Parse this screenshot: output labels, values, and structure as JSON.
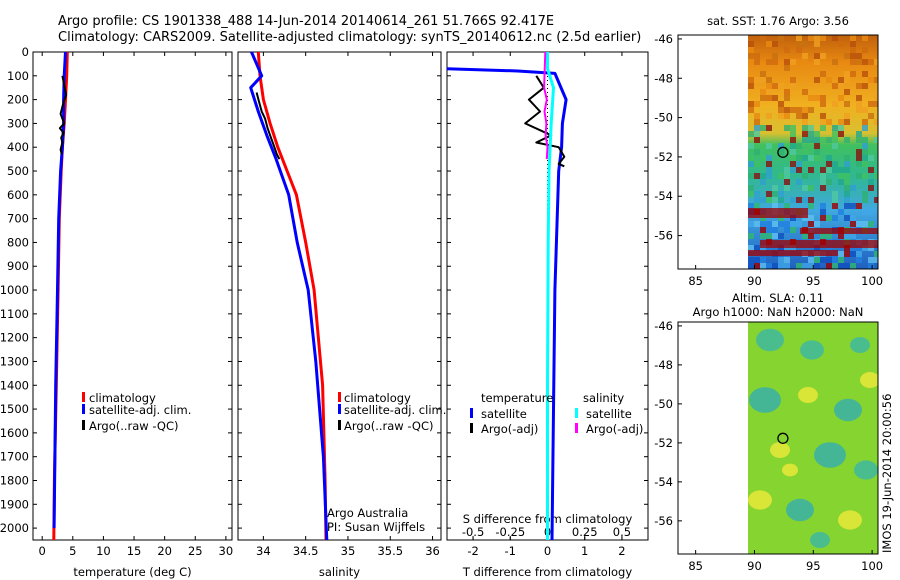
{
  "title": {
    "line1": "Argo profile: CS 1901338_488 14-Jun-2014 20140614_261 51.766S 92.417E",
    "line2": "Climatology: CARS2009. Satellite-adjusted climatology: synTS_20140612.nc (2.5d earlier)"
  },
  "colors": {
    "climatology": "#ff0000",
    "satellite": "#0000ff",
    "argo": "#000000",
    "sal_satellite": "#00ffff",
    "sal_argo": "#ff00ff"
  },
  "chart_data": [
    {
      "type": "line",
      "name": "temperature-profile",
      "xlabel": "temperature (deg C)",
      "xlim": [
        -1.5,
        31
      ],
      "xticks": [
        "0",
        "5",
        "10",
        "15",
        "20",
        "25",
        "30"
      ],
      "ylim": [
        0,
        2050
      ],
      "yticks": [
        "0",
        "100",
        "200",
        "300",
        "400",
        "500",
        "600",
        "700",
        "800",
        "900",
        "1000",
        "1100",
        "1200",
        "1300",
        "1400",
        "1500",
        "1600",
        "1700",
        "1800",
        "1900",
        "2000"
      ],
      "legend": [
        "climatology",
        "satellite-adj. clim.",
        "Argo(..raw -QC)"
      ],
      "series": [
        {
          "name": "climatology",
          "x": [
            4.1,
            4.0,
            3.8,
            3.6,
            3.3,
            3.1,
            2.8,
            2.6,
            2.3,
            2.0,
            1.9
          ],
          "y": [
            0,
            100,
            200,
            300,
            400,
            500,
            700,
            1000,
            1400,
            1800,
            2050
          ]
        },
        {
          "name": "satellite",
          "x": [
            3.8,
            3.6,
            3.5,
            3.5,
            3.3,
            3.0,
            2.7,
            2.5,
            2.2,
            1.95
          ],
          "y": [
            0,
            100,
            200,
            300,
            400,
            500,
            700,
            1000,
            1400,
            2000
          ]
        },
        {
          "name": "Argo",
          "x": [
            3.3,
            3.9,
            3.4,
            3.0,
            3.6,
            2.9,
            3.5,
            3.1,
            3.3,
            3.0,
            3.2
          ],
          "y": [
            100,
            180,
            220,
            260,
            300,
            320,
            340,
            360,
            380,
            410,
            430
          ]
        }
      ]
    },
    {
      "type": "line",
      "name": "salinity-profile",
      "xlabel": "salinity",
      "xlim": [
        33.7,
        36.1
      ],
      "xticks": [
        "34",
        "34.5",
        "35",
        "35.5",
        "36"
      ],
      "ylim": [
        0,
        2050
      ],
      "legend": [
        "climatology",
        "satellite-adj. clim.",
        "Argo(..raw -QC)"
      ],
      "annotation": [
        "Argo Australia",
        "PI: Susan Wijffels"
      ],
      "series": [
        {
          "name": "climatology",
          "x": [
            33.94,
            33.96,
            34.0,
            34.08,
            34.17,
            34.28,
            34.39,
            34.5,
            34.6,
            34.7,
            34.73,
            34.74
          ],
          "y": [
            0,
            100,
            200,
            300,
            400,
            500,
            600,
            800,
            1000,
            1400,
            1800,
            2050
          ]
        },
        {
          "name": "satellite",
          "x": [
            33.86,
            33.98,
            33.85,
            33.94,
            34.04,
            34.15,
            34.3,
            34.4,
            34.53,
            34.62,
            34.71,
            34.75
          ],
          "y": [
            0,
            100,
            150,
            250,
            350,
            450,
            600,
            800,
            1000,
            1300,
            1700,
            2050
          ]
        },
        {
          "name": "Argo",
          "x": [
            33.92,
            33.95,
            33.98,
            34.02,
            34.05,
            34.08,
            34.11,
            34.13,
            34.16,
            34.19
          ],
          "y": [
            170,
            210,
            250,
            280,
            320,
            350,
            380,
            400,
            430,
            450
          ]
        }
      ]
    },
    {
      "type": "line",
      "name": "difference-profile",
      "xlabel": "T difference from climatology",
      "xticks": [
        "-2",
        "-1",
        "0",
        "1",
        "2"
      ],
      "xlim": [
        -2.7,
        2.7
      ],
      "top_xlabel": "S difference from climatology",
      "top_xticks": [
        "-0.5",
        "-0.25",
        "0",
        "0.25",
        "0.5"
      ],
      "top_xlim": [
        -0.675,
        0.675
      ],
      "ylim": [
        0,
        2050
      ],
      "legend_titles": [
        "temperature",
        "salinity"
      ],
      "legend": [
        "satellite",
        "Argo(-adj)",
        "satellite",
        "Argo(-adj)"
      ],
      "series": [
        {
          "name": "T satellite",
          "x": [
            -2.7,
            -0.8,
            0.2,
            0.5,
            0.4,
            0.38,
            0.3,
            0.2,
            0.16,
            0.12
          ],
          "y": [
            70,
            80,
            90,
            200,
            300,
            400,
            500,
            1000,
            1500,
            2050
          ]
        },
        {
          "name": "T Argo",
          "x": [
            -0.3,
            -0.1,
            -0.5,
            -0.2,
            -0.6,
            0.1,
            -0.3,
            0.3,
            0.45,
            0.3,
            0.45
          ],
          "y": [
            100,
            150,
            200,
            250,
            300,
            350,
            380,
            400,
            440,
            470,
            480
          ]
        },
        {
          "name": "S satellite",
          "x": [
            0.0,
            0.0,
            0.16,
            0.1,
            0.04,
            0.02,
            0.0,
            0.0
          ],
          "y": [
            0,
            70,
            150,
            300,
            500,
            800,
            1400,
            2050
          ]
        },
        {
          "name": "S Argo",
          "x": [
            -0.06,
            -0.09,
            -0.02,
            -0.08,
            -0.03,
            -0.05,
            0.0,
            -0.02
          ],
          "y": [
            0,
            150,
            200,
            250,
            300,
            350,
            400,
            450
          ]
        }
      ]
    },
    {
      "type": "heatmap",
      "name": "sst-map",
      "title": "sat. SST: 1.76 Argo: 3.56",
      "xticks": [
        "85",
        "90",
        "95",
        "100"
      ],
      "yticks": [
        "-46",
        "-48",
        "-50",
        "-52",
        "-54",
        "-56"
      ],
      "xlim": [
        83.5,
        100.5
      ],
      "ylim": [
        -57.7,
        -45.8
      ],
      "marker": {
        "lon": 92.417,
        "lat": -51.766
      }
    },
    {
      "type": "heatmap",
      "name": "sla-map",
      "title": [
        "Altim. SLA: 0.11",
        "Argo h1000: NaN h2000: NaN"
      ],
      "xticks": [
        "85",
        "90",
        "95",
        "100"
      ],
      "yticks": [
        "-46",
        "-48",
        "-50",
        "-52",
        "-54",
        "-56"
      ],
      "xlim": [
        83.5,
        100.5
      ],
      "ylim": [
        -57.7,
        -45.8
      ],
      "marker": {
        "lon": 92.417,
        "lat": -51.766
      }
    }
  ],
  "side_stamp": "IMOS 19-Jun-2014 20:00:56"
}
